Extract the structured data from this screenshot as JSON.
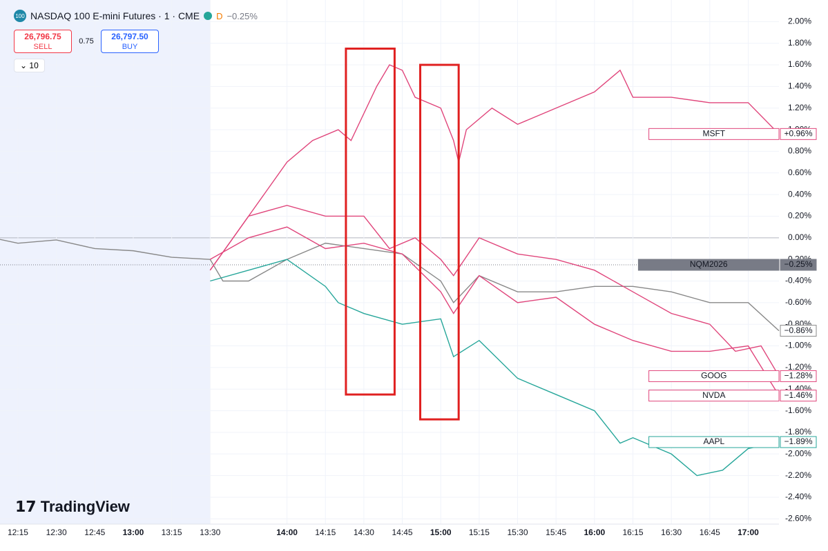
{
  "header": {
    "title": "NASDAQ 100 E-mini Futures · 1 · CME",
    "logo": "100",
    "interval_badge": "D",
    "change": "−0.25%",
    "sell_price": "26,796.75",
    "sell": "SELL",
    "spread": "0.75",
    "buy_price": "26,797.50",
    "buy": "BUY",
    "indicator_toggle": "10",
    "brand": "TradingView"
  },
  "chart_data": {
    "type": "line",
    "xlim": [
      "12:08",
      "17:12"
    ],
    "ylim": [
      2.2,
      -2.7
    ],
    "extended_hours_until": "13:30",
    "xticks": [
      "12:15",
      "12:30",
      "12:45",
      "13:00",
      "13:15",
      "13:30",
      "14:00",
      "14:15",
      "14:30",
      "14:45",
      "15:00",
      "15:15",
      "15:30",
      "15:45",
      "16:00",
      "16:15",
      "16:30",
      "16:45",
      "17:00"
    ],
    "yticks": [
      {
        "value": 2.0,
        "label": "2.00%"
      },
      {
        "value": 1.8,
        "label": "1.80%"
      },
      {
        "value": 1.6,
        "label": "1.60%"
      },
      {
        "value": 1.4,
        "label": "1.40%"
      },
      {
        "value": 1.2,
        "label": "1.20%"
      },
      {
        "value": 1.0,
        "label": "1.00%"
      },
      {
        "value": 0.8,
        "label": "0.80%"
      },
      {
        "value": 0.6,
        "label": "0.60%"
      },
      {
        "value": 0.4,
        "label": "0.40%"
      },
      {
        "value": 0.2,
        "label": "0.20%"
      },
      {
        "value": 0,
        "label": "0.00%"
      },
      {
        "value": -0.2,
        "label": "-0.20%"
      },
      {
        "value": -0.4,
        "label": "-0.40%"
      },
      {
        "value": -0.6,
        "label": "-0.60%"
      },
      {
        "value": -0.8,
        "label": "-0.80%"
      },
      {
        "value": -1.0,
        "label": "-1.00%"
      },
      {
        "value": -1.2,
        "label": "-1.20%"
      },
      {
        "value": -1.4,
        "label": "-1.40%"
      },
      {
        "value": -1.6,
        "label": "-1.60%"
      },
      {
        "value": -1.8,
        "label": "-1.80%"
      },
      {
        "value": -2.0,
        "label": "-2.00%"
      },
      {
        "value": -2.2,
        "label": "-2.20%"
      },
      {
        "value": -2.4,
        "label": "-2.40%"
      },
      {
        "value": -2.6,
        "label": "-2.60%"
      }
    ],
    "price_line": {
      "name": "NQM2026",
      "value": -0.25,
      "label": "−0.25%",
      "color": "#787b86"
    },
    "series": [
      {
        "color": "#888888",
        "end_label": "−0.86%",
        "x": [
          "12:05",
          "12:15",
          "12:30",
          "12:45",
          "13:00",
          "13:15",
          "13:30",
          "13:35",
          "13:45",
          "14:00",
          "14:15",
          "14:30",
          "14:45",
          "15:00",
          "15:05",
          "15:15",
          "15:30",
          "15:45",
          "16:00",
          "16:15",
          "16:30",
          "16:45",
          "17:00",
          "17:12"
        ],
        "values": [
          0,
          -0.05,
          -0.02,
          -0.1,
          -0.12,
          -0.18,
          -0.2,
          -0.4,
          -0.4,
          -0.2,
          -0.05,
          -0.1,
          -0.15,
          -0.4,
          -0.6,
          -0.35,
          -0.5,
          -0.5,
          -0.45,
          -0.45,
          -0.5,
          -0.6,
          -0.6,
          -0.86
        ]
      },
      {
        "name": "MSFT",
        "color": "#e0457b",
        "end_label": "+0.96%",
        "x": [
          "13:30",
          "13:45",
          "14:00",
          "14:10",
          "14:20",
          "14:25",
          "14:35",
          "14:40",
          "14:45",
          "14:50",
          "15:00",
          "15:05",
          "15:07",
          "15:10",
          "15:20",
          "15:30",
          "15:45",
          "16:00",
          "16:10",
          "16:15",
          "16:30",
          "16:45",
          "17:00",
          "17:12"
        ],
        "values": [
          -0.3,
          0.2,
          0.7,
          0.9,
          1.0,
          0.9,
          1.4,
          1.6,
          1.55,
          1.3,
          1.2,
          0.9,
          0.7,
          1.0,
          1.2,
          1.05,
          1.2,
          1.35,
          1.55,
          1.3,
          1.3,
          1.25,
          1.25,
          0.96
        ]
      },
      {
        "name": "GOOG",
        "color": "#e0457b",
        "end_label": "−1.28%",
        "x": [
          "13:30",
          "13:45",
          "14:00",
          "14:15",
          "14:30",
          "14:40",
          "14:50",
          "15:00",
          "15:05",
          "15:15",
          "15:30",
          "15:45",
          "16:00",
          "16:15",
          "16:30",
          "16:45",
          "16:55",
          "17:05",
          "17:12"
        ],
        "values": [
          -0.3,
          0.2,
          0.3,
          0.2,
          0.2,
          -0.1,
          0.0,
          -0.2,
          -0.35,
          0.0,
          -0.15,
          -0.2,
          -0.3,
          -0.5,
          -0.7,
          -0.8,
          -1.05,
          -1.0,
          -1.28
        ]
      },
      {
        "name": "NVDA",
        "color": "#e0457b",
        "end_label": "−1.46%",
        "x": [
          "13:30",
          "13:45",
          "14:00",
          "14:15",
          "14:30",
          "14:45",
          "15:00",
          "15:05",
          "15:15",
          "15:30",
          "15:45",
          "16:00",
          "16:15",
          "16:30",
          "16:45",
          "17:00",
          "17:12"
        ],
        "values": [
          -0.2,
          0.0,
          0.1,
          -0.1,
          -0.05,
          -0.15,
          -0.5,
          -0.7,
          -0.35,
          -0.6,
          -0.55,
          -0.8,
          -0.95,
          -1.05,
          -1.05,
          -1.0,
          -1.46
        ]
      },
      {
        "name": "AAPL",
        "color": "#26a69a",
        "end_label": "−1.89%",
        "x": [
          "13:30",
          "13:45",
          "14:00",
          "14:15",
          "14:20",
          "14:30",
          "14:45",
          "15:00",
          "15:05",
          "15:15",
          "15:30",
          "15:45",
          "16:00",
          "16:10",
          "16:15",
          "16:30",
          "16:40",
          "16:50",
          "17:00",
          "17:12"
        ],
        "values": [
          -0.4,
          -0.3,
          -0.2,
          -0.45,
          -0.6,
          -0.7,
          -0.8,
          -0.75,
          -1.1,
          -0.95,
          -1.3,
          -1.45,
          -1.6,
          -1.9,
          -1.85,
          -2.0,
          -2.2,
          -2.15,
          -1.95,
          -1.89
        ]
      }
    ],
    "annotations": [
      {
        "x": [
          "14:23",
          "14:42"
        ],
        "y": [
          1.75,
          -1.45
        ],
        "color": "#e02020"
      },
      {
        "x": [
          "14:52",
          "15:07"
        ],
        "y": [
          1.6,
          -1.68
        ],
        "color": "#e02020"
      }
    ]
  }
}
